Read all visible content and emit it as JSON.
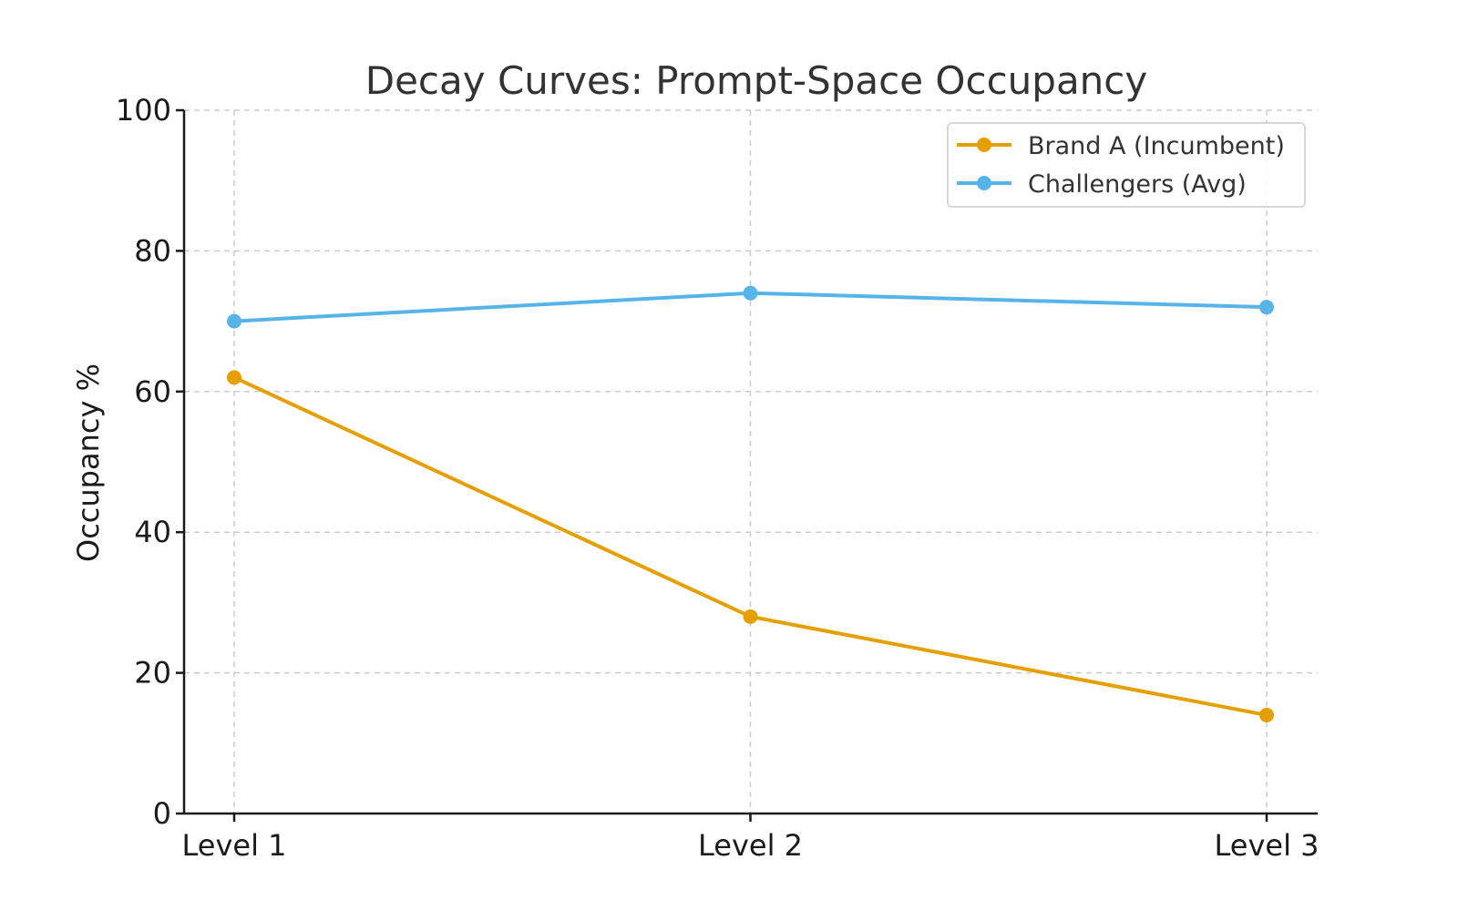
{
  "chart_data": {
    "type": "line",
    "title": "Decay Curves: Prompt-Space Occupancy",
    "xlabel": "",
    "ylabel": "Occupancy %",
    "categories": [
      "Level 1",
      "Level 2",
      "Level 3"
    ],
    "ylim": [
      0,
      100
    ],
    "yticks": [
      0,
      20,
      40,
      60,
      80,
      100
    ],
    "grid": true,
    "legend_position": "top-right",
    "series": [
      {
        "name": "Brand A (Incumbent)",
        "values": [
          62,
          28,
          14
        ],
        "color": "#E69F00"
      },
      {
        "name": "Challengers (Avg)",
        "values": [
          70,
          74,
          72
        ],
        "color": "#56B4E9"
      }
    ]
  }
}
